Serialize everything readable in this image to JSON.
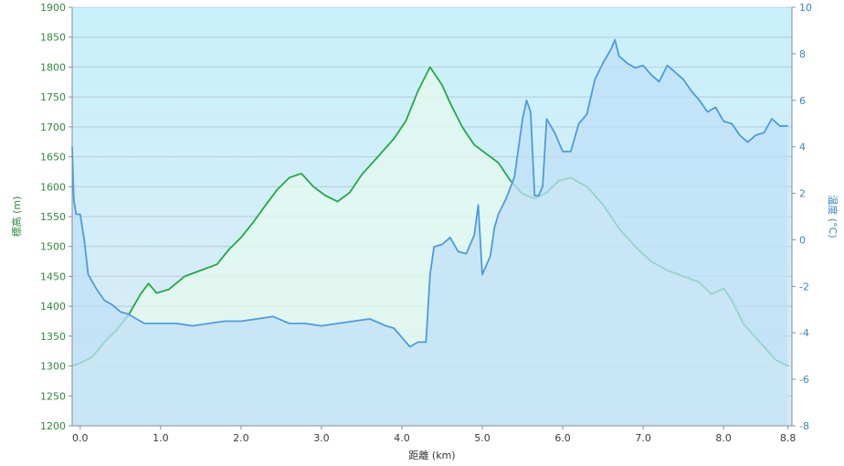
{
  "chart_data": {
    "type": "area",
    "x_label": "距離 (km)",
    "y_left_label": "標高 (m)",
    "y_right_label": "温度 (°C)",
    "x_range": [
      -0.1,
      8.85
    ],
    "y_left_range": [
      1200,
      1900
    ],
    "y_right_range": [
      -8,
      10
    ],
    "x_ticks": [
      "0.0",
      "1.0",
      "2.0",
      "3.0",
      "4.0",
      "5.0",
      "6.0",
      "7.0",
      "8.0",
      "8.8"
    ],
    "x_tick_values": [
      0,
      1,
      2,
      3,
      4,
      5,
      6,
      7,
      8,
      8.8
    ],
    "y_left_ticks": [
      1200,
      1250,
      1300,
      1350,
      1400,
      1450,
      1500,
      1550,
      1600,
      1650,
      1700,
      1750,
      1800,
      1850,
      1900
    ],
    "y_right_ticks": [
      -8,
      -6,
      -4,
      -2,
      0,
      2,
      4,
      6,
      8,
      10
    ],
    "grid": true,
    "colors": {
      "elevation_line": "#22aa44",
      "elevation_fill": "#e6f9ee",
      "temperature_line": "#4d9be0",
      "temperature_fill": "#bfe0f7",
      "plot_bg_top": "#c9f1fb",
      "plot_bg_bottom": "#dbeaf7",
      "grid": "#9fb0c0",
      "left_axis_text": "#2f8a3a",
      "right_axis_text": "#3b85c7"
    },
    "series": [
      {
        "name": "標高",
        "axis": "left",
        "x": [
          -0.1,
          0.0,
          0.15,
          0.3,
          0.45,
          0.6,
          0.75,
          0.85,
          0.95,
          1.1,
          1.3,
          1.5,
          1.7,
          1.85,
          2.0,
          2.15,
          2.3,
          2.45,
          2.6,
          2.75,
          2.9,
          3.05,
          3.2,
          3.35,
          3.5,
          3.7,
          3.9,
          4.05,
          4.2,
          4.35,
          4.5,
          4.6,
          4.75,
          4.9,
          5.05,
          5.2,
          5.35,
          5.5,
          5.65,
          5.8,
          5.95,
          6.1,
          6.3,
          6.5,
          6.7,
          6.9,
          7.1,
          7.3,
          7.5,
          7.7,
          7.85,
          8.0,
          8.1,
          8.25,
          8.45,
          8.65,
          8.8
        ],
        "values": [
          1300,
          1305,
          1315,
          1340,
          1360,
          1385,
          1420,
          1438,
          1422,
          1428,
          1450,
          1460,
          1470,
          1495,
          1515,
          1540,
          1568,
          1595,
          1615,
          1622,
          1600,
          1585,
          1575,
          1590,
          1620,
          1650,
          1680,
          1710,
          1760,
          1800,
          1770,
          1740,
          1700,
          1670,
          1655,
          1640,
          1610,
          1588,
          1580,
          1590,
          1610,
          1615,
          1600,
          1570,
          1530,
          1500,
          1475,
          1460,
          1450,
          1440,
          1420,
          1430,
          1410,
          1370,
          1340,
          1310,
          1300
        ]
      },
      {
        "name": "温度",
        "axis": "right",
        "x": [
          -0.1,
          -0.08,
          -0.05,
          0.0,
          0.05,
          0.1,
          0.2,
          0.3,
          0.4,
          0.5,
          0.6,
          0.7,
          0.8,
          0.9,
          1.0,
          1.2,
          1.4,
          1.6,
          1.8,
          2.0,
          2.2,
          2.4,
          2.6,
          2.8,
          3.0,
          3.2,
          3.4,
          3.6,
          3.8,
          3.9,
          4.0,
          4.1,
          4.2,
          4.3,
          4.35,
          4.4,
          4.5,
          4.6,
          4.7,
          4.8,
          4.9,
          4.95,
          5.0,
          5.05,
          5.1,
          5.15,
          5.2,
          5.3,
          5.4,
          5.5,
          5.55,
          5.6,
          5.65,
          5.7,
          5.75,
          5.8,
          5.9,
          6.0,
          6.1,
          6.2,
          6.3,
          6.4,
          6.5,
          6.6,
          6.65,
          6.7,
          6.8,
          6.9,
          7.0,
          7.1,
          7.2,
          7.3,
          7.4,
          7.5,
          7.6,
          7.7,
          7.8,
          7.9,
          8.0,
          8.1,
          8.2,
          8.3,
          8.4,
          8.5,
          8.6,
          8.7,
          8.8
        ],
        "values": [
          4.0,
          1.7,
          1.1,
          1.1,
          0.0,
          -1.5,
          -2.1,
          -2.6,
          -2.8,
          -3.1,
          -3.2,
          -3.4,
          -3.6,
          -3.6,
          -3.6,
          -3.6,
          -3.7,
          -3.6,
          -3.5,
          -3.5,
          -3.4,
          -3.3,
          -3.6,
          -3.6,
          -3.7,
          -3.6,
          -3.5,
          -3.4,
          -3.7,
          -3.8,
          -4.2,
          -4.6,
          -4.4,
          -4.4,
          -1.5,
          -0.3,
          -0.2,
          0.1,
          -0.5,
          -0.6,
          0.2,
          1.5,
          -1.5,
          -1.1,
          -0.7,
          0.5,
          1.1,
          1.8,
          2.7,
          5.2,
          6.0,
          5.5,
          1.9,
          1.9,
          2.3,
          5.2,
          4.6,
          3.8,
          3.8,
          5.0,
          5.4,
          6.9,
          7.6,
          8.2,
          8.6,
          7.9,
          7.6,
          7.4,
          7.5,
          7.1,
          6.8,
          7.5,
          7.2,
          6.9,
          6.4,
          6.0,
          5.5,
          5.7,
          5.1,
          5.0,
          4.5,
          4.2,
          4.5,
          4.6,
          5.2,
          4.9,
          4.9
        ]
      }
    ]
  }
}
